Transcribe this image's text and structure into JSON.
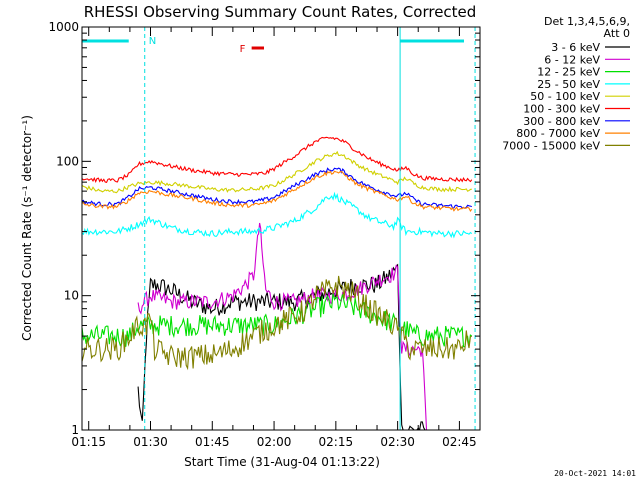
{
  "chart_data": {
    "type": "line",
    "title": "RHESSI Observing Summary Count Rates, Corrected",
    "ylabel": "Corrected Count Rate (s⁻¹ detector⁻¹)",
    "xlabel": "Start Time (31-Aug-04 01:13:22)",
    "y_scale": "log",
    "ylim": [
      1,
      1000
    ],
    "y_ticks": [
      {
        "value": 1,
        "label": "1"
      },
      {
        "value": 10,
        "label": "10"
      },
      {
        "value": 100,
        "label": "100"
      },
      {
        "value": 1000,
        "label": "1000"
      }
    ],
    "xlim_minutes": [
      73.37,
      170
    ],
    "x_ticks": [
      {
        "minute": 75,
        "label": "01:15"
      },
      {
        "minute": 90,
        "label": "01:30"
      },
      {
        "minute": 105,
        "label": "01:45"
      },
      {
        "minute": 120,
        "label": "02:00"
      },
      {
        "minute": 135,
        "label": "02:15"
      },
      {
        "minute": 150,
        "label": "02:30"
      },
      {
        "minute": 165,
        "label": "02:45"
      }
    ],
    "legend_header": [
      "Det 1,3,4,5,6,9,",
      "Att 0"
    ],
    "legend_position": "right",
    "series": [
      {
        "name": "3 - 6 keV",
        "color": "#000000",
        "points": [
          [
            73.4,
            null
          ],
          [
            86,
            null
          ],
          [
            87,
            2
          ],
          [
            88,
            1
          ],
          [
            89,
            5
          ],
          [
            90,
            12
          ],
          [
            92,
            12
          ],
          [
            95,
            11
          ],
          [
            100,
            9
          ],
          [
            105,
            8
          ],
          [
            110,
            9
          ],
          [
            115,
            9
          ],
          [
            118,
            9
          ],
          [
            120,
            9
          ],
          [
            125,
            9
          ],
          [
            130,
            10
          ],
          [
            135,
            11
          ],
          [
            140,
            12
          ],
          [
            145,
            12
          ],
          [
            148,
            14
          ],
          [
            150,
            16
          ],
          [
            151,
            1
          ],
          [
            153,
            1
          ],
          [
            155,
            1
          ],
          [
            157,
            1
          ]
        ]
      },
      {
        "name": "6 - 12 keV",
        "color": "#d000d0",
        "points": [
          [
            87,
            8
          ],
          [
            90,
            10
          ],
          [
            95,
            9
          ],
          [
            100,
            9
          ],
          [
            105,
            9
          ],
          [
            110,
            10
          ],
          [
            113,
            12
          ],
          [
            115,
            14
          ],
          [
            116,
            25
          ],
          [
            116.5,
            35
          ],
          [
            117,
            22
          ],
          [
            118,
            11
          ],
          [
            120,
            9
          ],
          [
            125,
            9
          ],
          [
            130,
            10
          ],
          [
            135,
            10
          ],
          [
            140,
            11
          ],
          [
            145,
            13
          ],
          [
            150,
            15
          ],
          [
            151,
            4
          ],
          [
            155,
            4
          ],
          [
            156,
            4
          ],
          [
            157,
            1
          ]
        ]
      },
      {
        "name": "12 - 25 keV",
        "color": "#00e000",
        "points": [
          [
            73.4,
            5
          ],
          [
            75,
            5
          ],
          [
            80,
            5
          ],
          [
            85,
            5
          ],
          [
            87,
            6
          ],
          [
            90,
            6
          ],
          [
            95,
            6
          ],
          [
            100,
            6
          ],
          [
            105,
            6
          ],
          [
            110,
            6
          ],
          [
            115,
            6
          ],
          [
            118,
            6
          ],
          [
            120,
            6
          ],
          [
            125,
            7
          ],
          [
            130,
            8
          ],
          [
            135,
            9
          ],
          [
            140,
            8
          ],
          [
            145,
            7
          ],
          [
            150,
            6
          ],
          [
            155,
            5
          ],
          [
            160,
            5
          ],
          [
            165,
            5
          ],
          [
            168,
            5
          ]
        ]
      },
      {
        "name": "25 - 50 keV",
        "color": "#00ffff",
        "points": [
          [
            73.4,
            30
          ],
          [
            78,
            30
          ],
          [
            82,
            30
          ],
          [
            85,
            32
          ],
          [
            88,
            35
          ],
          [
            90,
            37
          ],
          [
            92,
            35
          ],
          [
            95,
            32
          ],
          [
            100,
            30
          ],
          [
            105,
            29
          ],
          [
            110,
            30
          ],
          [
            115,
            30
          ],
          [
            118,
            31
          ],
          [
            120,
            32
          ],
          [
            125,
            36
          ],
          [
            130,
            45
          ],
          [
            133,
            55
          ],
          [
            135,
            55
          ],
          [
            137,
            50
          ],
          [
            140,
            44
          ],
          [
            143,
            38
          ],
          [
            146,
            35
          ],
          [
            149,
            33
          ],
          [
            150,
            36
          ],
          [
            152,
            30
          ],
          [
            155,
            30
          ],
          [
            160,
            29
          ],
          [
            165,
            29
          ],
          [
            168,
            29
          ]
        ]
      },
      {
        "name": "50 - 100 keV",
        "color": "#d0d000",
        "points": [
          [
            73.4,
            65
          ],
          [
            78,
            60
          ],
          [
            82,
            60
          ],
          [
            85,
            65
          ],
          [
            87,
            68
          ],
          [
            90,
            70
          ],
          [
            95,
            68
          ],
          [
            100,
            65
          ],
          [
            105,
            62
          ],
          [
            110,
            61
          ],
          [
            115,
            62
          ],
          [
            118,
            64
          ],
          [
            120,
            66
          ],
          [
            125,
            80
          ],
          [
            130,
            100
          ],
          [
            133,
            110
          ],
          [
            135,
            115
          ],
          [
            137,
            110
          ],
          [
            140,
            95
          ],
          [
            143,
            85
          ],
          [
            146,
            78
          ],
          [
            149,
            72
          ],
          [
            150,
            70
          ],
          [
            152,
            75
          ],
          [
            154,
            68
          ],
          [
            156,
            64
          ],
          [
            160,
            62
          ],
          [
            165,
            62
          ],
          [
            168,
            62
          ]
        ]
      },
      {
        "name": "100 - 300 keV",
        "color": "#ff0000",
        "points": [
          [
            73.4,
            75
          ],
          [
            78,
            72
          ],
          [
            82,
            72
          ],
          [
            85,
            80
          ],
          [
            87,
            95
          ],
          [
            90,
            100
          ],
          [
            95,
            92
          ],
          [
            100,
            86
          ],
          [
            105,
            82
          ],
          [
            110,
            80
          ],
          [
            115,
            80
          ],
          [
            118,
            82
          ],
          [
            120,
            88
          ],
          [
            125,
            110
          ],
          [
            130,
            140
          ],
          [
            133,
            150
          ],
          [
            135,
            148
          ],
          [
            137,
            140
          ],
          [
            140,
            120
          ],
          [
            143,
            105
          ],
          [
            146,
            95
          ],
          [
            149,
            88
          ],
          [
            150,
            85
          ],
          [
            152,
            90
          ],
          [
            154,
            80
          ],
          [
            156,
            75
          ],
          [
            160,
            74
          ],
          [
            165,
            73
          ],
          [
            168,
            73
          ]
        ]
      },
      {
        "name": "300 - 800 keV",
        "color": "#0000ff",
        "points": [
          [
            73.4,
            50
          ],
          [
            78,
            48
          ],
          [
            82,
            48
          ],
          [
            85,
            55
          ],
          [
            87,
            62
          ],
          [
            90,
            64
          ],
          [
            95,
            60
          ],
          [
            100,
            56
          ],
          [
            105,
            52
          ],
          [
            110,
            50
          ],
          [
            115,
            50
          ],
          [
            118,
            52
          ],
          [
            120,
            54
          ],
          [
            125,
            66
          ],
          [
            130,
            80
          ],
          [
            133,
            86
          ],
          [
            135,
            88
          ],
          [
            137,
            84
          ],
          [
            140,
            72
          ],
          [
            143,
            65
          ],
          [
            146,
            60
          ],
          [
            149,
            56
          ],
          [
            150,
            55
          ],
          [
            152,
            58
          ],
          [
            154,
            52
          ],
          [
            156,
            48
          ],
          [
            160,
            47
          ],
          [
            165,
            46
          ],
          [
            168,
            46
          ]
        ]
      },
      {
        "name": "800 - 7000 keV",
        "color": "#ff8000",
        "points": [
          [
            73.4,
            48
          ],
          [
            78,
            46
          ],
          [
            82,
            46
          ],
          [
            85,
            52
          ],
          [
            87,
            58
          ],
          [
            90,
            60
          ],
          [
            95,
            56
          ],
          [
            100,
            53
          ],
          [
            105,
            49
          ],
          [
            110,
            47
          ],
          [
            115,
            47
          ],
          [
            118,
            49
          ],
          [
            120,
            51
          ],
          [
            125,
            62
          ],
          [
            130,
            76
          ],
          [
            133,
            82
          ],
          [
            135,
            84
          ],
          [
            137,
            80
          ],
          [
            140,
            68
          ],
          [
            143,
            62
          ],
          [
            146,
            57
          ],
          [
            149,
            53
          ],
          [
            150,
            52
          ],
          [
            152,
            55
          ],
          [
            154,
            49
          ],
          [
            156,
            46
          ],
          [
            160,
            45
          ],
          [
            165,
            44
          ],
          [
            168,
            44
          ]
        ]
      },
      {
        "name": "7000 - 15000 keV",
        "color": "#808000",
        "points": [
          [
            73.4,
            4
          ],
          [
            78,
            4
          ],
          [
            82,
            4
          ],
          [
            85,
            5
          ],
          [
            87,
            6
          ],
          [
            89,
            6
          ],
          [
            90,
            7
          ],
          [
            91,
            4
          ],
          [
            95,
            3.5
          ],
          [
            100,
            3.5
          ],
          [
            105,
            3.6
          ],
          [
            110,
            4
          ],
          [
            115,
            5
          ],
          [
            120,
            6
          ],
          [
            125,
            7
          ],
          [
            128,
            8
          ],
          [
            130,
            10
          ],
          [
            133,
            11
          ],
          [
            135,
            12
          ],
          [
            138,
            11
          ],
          [
            140,
            10
          ],
          [
            143,
            8
          ],
          [
            146,
            7
          ],
          [
            149,
            6
          ],
          [
            151,
            5
          ],
          [
            153,
            4
          ],
          [
            155,
            4
          ],
          [
            157,
            4
          ],
          [
            160,
            4
          ],
          [
            165,
            4
          ],
          [
            168,
            5
          ]
        ]
      }
    ],
    "annotations": {
      "night_label": "N",
      "flare_label": "F",
      "night_bar_color": "#00e0e0",
      "night_periods_minutes": [
        [
          73.4,
          88.6
        ],
        [
          150.6,
          170
        ]
      ],
      "night_dashed_markers_minutes": [
        88.6,
        168.8
      ],
      "night_solid_markers_minutes": [
        150.6
      ],
      "flare_bar_minutes": [
        116.5,
        119.5
      ],
      "flare_color": "#e00000"
    },
    "timestamp": "20-Oct-2021 14:01"
  }
}
